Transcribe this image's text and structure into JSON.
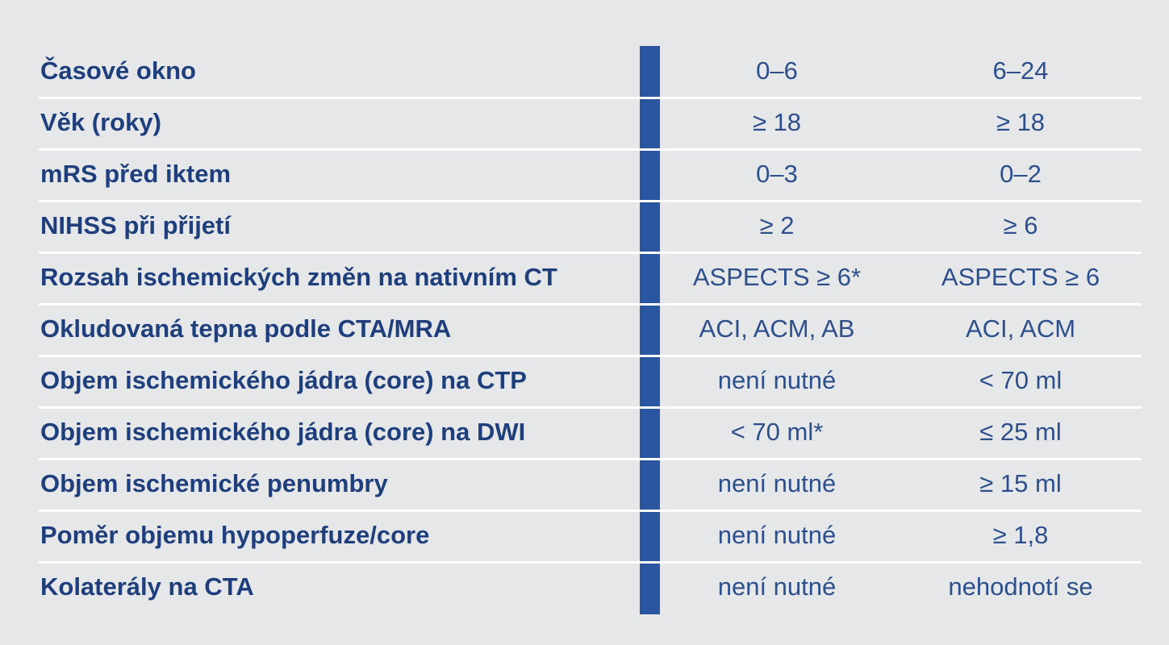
{
  "table": {
    "rows": [
      [
        "Časové okno",
        "0–6",
        "6–24"
      ],
      [
        "Věk (roky)",
        "≥ 18",
        "≥ 18"
      ],
      [
        "mRS před iktem",
        "0–3",
        "0–2"
      ],
      [
        "NIHSS při přijetí",
        "≥ 2",
        "≥ 6"
      ],
      [
        "Rozsah ischemických změn na nativním CT",
        "ASPECTS ≥ 6*",
        "ASPECTS ≥ 6"
      ],
      [
        "Okludovaná tepna podle CTA/MRA",
        "ACI, ACM, AB",
        "ACI, ACM"
      ],
      [
        "Objem ischemického jádra (core) na CTP",
        "není nutné",
        "< 70 ml"
      ],
      [
        "Objem ischemického jádra (core) na DWI",
        "< 70 ml*",
        "≤ 25 ml"
      ],
      [
        "Objem ischemické penumbry",
        "není nutné",
        "≥ 15 ml"
      ],
      [
        "Poměr objemu hypoperfuze/core",
        "není nutné",
        "≥ 1,8"
      ],
      [
        "Kolaterály na CTA",
        "není nutné",
        "nehodnotí se"
      ]
    ]
  }
}
